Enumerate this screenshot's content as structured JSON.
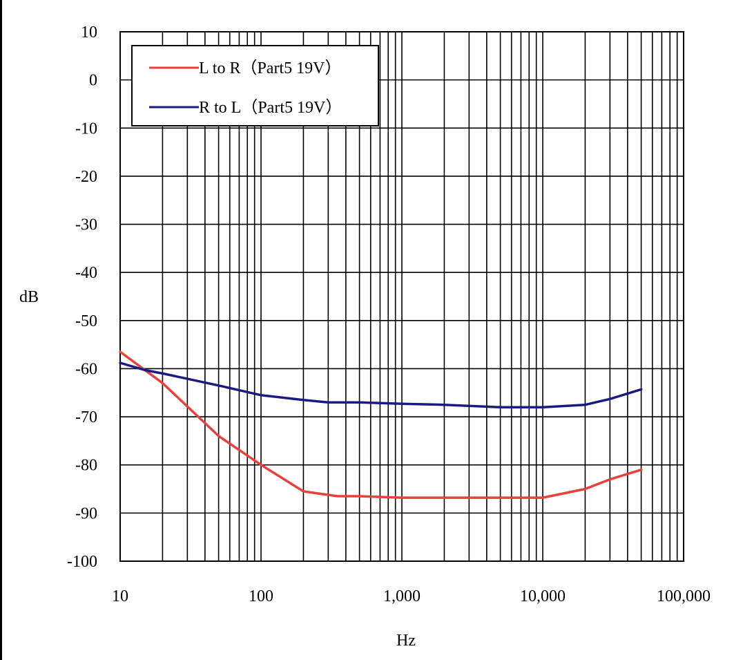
{
  "chart_data": {
    "type": "line",
    "title": "",
    "xlabel": "Hz",
    "ylabel": "dB",
    "xscale": "log",
    "xlim": [
      10,
      100000
    ],
    "ylim": [
      -100,
      10
    ],
    "grid": true,
    "legend_position": "top-left",
    "x_ticks": [
      {
        "value": 10,
        "label": "10"
      },
      {
        "value": 100,
        "label": "100"
      },
      {
        "value": 1000,
        "label": "1,000"
      },
      {
        "value": 10000,
        "label": "10,000"
      },
      {
        "value": 100000,
        "label": "100,000"
      }
    ],
    "y_ticks": [
      {
        "value": 10,
        "label": "10"
      },
      {
        "value": 0,
        "label": "0"
      },
      {
        "value": -10,
        "label": "-10"
      },
      {
        "value": -20,
        "label": "-20"
      },
      {
        "value": -30,
        "label": "-30"
      },
      {
        "value": -40,
        "label": "-40"
      },
      {
        "value": -50,
        "label": "-50"
      },
      {
        "value": -60,
        "label": "-60"
      },
      {
        "value": -70,
        "label": "-70"
      },
      {
        "value": -80,
        "label": "-80"
      },
      {
        "value": -90,
        "label": "-90"
      },
      {
        "value": -100,
        "label": "-100"
      }
    ],
    "series": [
      {
        "name": "L to R（Part5 19V）",
        "color": "#e8403a",
        "x": [
          10,
          20,
          50,
          100,
          200,
          350,
          500,
          1000,
          2000,
          5000,
          10000,
          20000,
          30000,
          50000
        ],
        "y": [
          -56.5,
          -63,
          -74,
          -80,
          -85.5,
          -86.5,
          -86.5,
          -86.8,
          -86.8,
          -86.8,
          -86.8,
          -85,
          -83,
          -81
        ]
      },
      {
        "name": "R to L（Part5 19V）",
        "color": "#1a1a80",
        "x": [
          10,
          15,
          20,
          50,
          100,
          200,
          300,
          500,
          1000,
          2000,
          5000,
          10000,
          20000,
          30000,
          50000
        ],
        "y": [
          -58.8,
          -60.3,
          -61,
          -63.5,
          -65.5,
          -66.5,
          -67,
          -67,
          -67.3,
          -67.5,
          -68,
          -68,
          -67.5,
          -66.3,
          -64.3
        ]
      }
    ]
  }
}
